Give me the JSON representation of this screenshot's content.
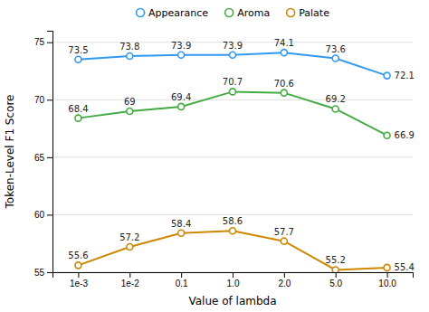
{
  "chart_data": {
    "type": "line",
    "xlabel": "Value of lambda",
    "ylabel": "Token-Level F1 Score",
    "categories": [
      "1e-3",
      "1e-2",
      "0.1",
      "1.0",
      "2.0",
      "5.0",
      "10.0"
    ],
    "series": [
      {
        "name": "Appearance",
        "color": "#3399ee",
        "values": [
          73.5,
          73.8,
          73.9,
          73.9,
          74.1,
          73.6,
          72.1
        ]
      },
      {
        "name": "Aroma",
        "color": "#44aa44",
        "values": [
          68.4,
          69.0,
          69.4,
          70.7,
          70.6,
          69.2,
          66.9
        ]
      },
      {
        "name": "Palate",
        "color": "#cc8800",
        "values": [
          55.6,
          57.2,
          58.4,
          58.6,
          57.7,
          55.2,
          55.4
        ]
      }
    ],
    "ylim": [
      55,
      76
    ],
    "yticks": [
      55,
      60,
      65,
      70,
      75
    ],
    "grid": true,
    "legend": "top",
    "data_labels": true,
    "marker": "circle"
  }
}
